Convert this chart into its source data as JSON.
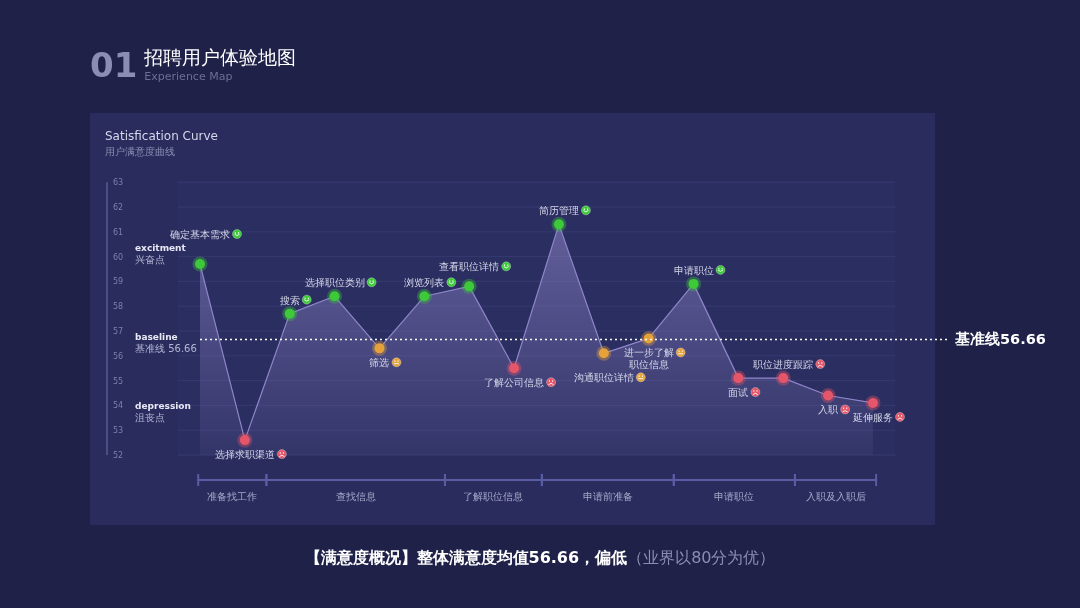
{
  "chart_data": {
    "type": "area",
    "title": "Satisfication Curve",
    "subtitle": "用户满意度曲线",
    "categories": [
      "确定基本需求",
      "选择求职渠道",
      "搜索",
      "选择职位类别",
      "筛选",
      "浏览列表",
      "查看职位详情",
      "了解公司信息",
      "简历管理",
      "沟通职位详情",
      "进一步了解职位信息",
      "申请职位",
      "面试",
      "职位进度跟踪",
      "入职",
      "延伸服务"
    ],
    "series": [
      {
        "color": "#8f86c9",
        "colors": [
          "#3ec93a",
          "#e5566a",
          "#3ec93a",
          "#3ec93a",
          "#e6a23a",
          "#3ec93a",
          "#3ec93a",
          "#e5566a",
          "#3ec93a",
          "#e6a23a",
          "#e6a23a",
          "#3ec93a",
          "#e5566a",
          "#e5566a",
          "#e5566a",
          "#e5566a"
        ],
        "values": [
          59.7,
          52.6,
          57.7,
          58.4,
          56.3,
          58.4,
          58.8,
          55.5,
          61.3,
          56.1,
          56.7,
          58.9,
          55.1,
          55.1,
          54.4,
          54.1
        ]
      }
    ],
    "ylim": [
      52,
      63
    ],
    "yticks": [
      52,
      53,
      54,
      55,
      56,
      57,
      58,
      59,
      60,
      61,
      62,
      63
    ],
    "grid": "y",
    "marker": "circle",
    "ref_lines": [
      {
        "axis": "y",
        "value": 56.66,
        "label": "基准线56.66",
        "color": "#ffffff",
        "line_style": "dotted"
      }
    ],
    "annotations": [
      "01",
      "招聘用户体验地图",
      "Experience Map",
      "excitment",
      "兴奋点",
      "baseline",
      "基准线 56.66",
      "depression",
      "沮丧点",
      "准备找工作",
      "查找信息",
      "了解职位信息",
      "申请前准备",
      "申请职位",
      "入职及入职后",
      "【满意度概况】整体满意度均值56.66，偏低",
      "（业界以80分为优）"
    ]
  }
}
